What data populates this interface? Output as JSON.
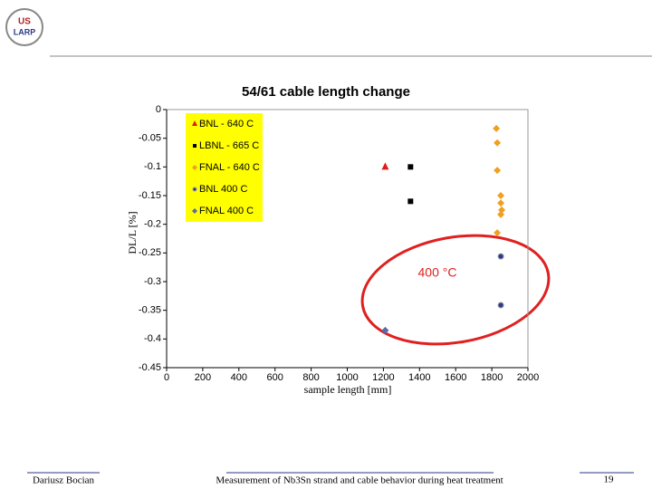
{
  "logo": {
    "top": "US",
    "bottom": "LARP"
  },
  "chart_data": {
    "type": "scatter",
    "title": "54/61 cable length change",
    "x_label": "sample length [mm]",
    "y_label": "DL/L [%]",
    "xlim": [
      0,
      2000
    ],
    "xticks": [
      0,
      200,
      400,
      600,
      800,
      1000,
      1200,
      1400,
      1600,
      1800,
      2000
    ],
    "ylim": [
      -0.45,
      0
    ],
    "yticks": [
      0,
      -0.05,
      -0.1,
      -0.15,
      -0.2,
      -0.25,
      -0.3,
      -0.35,
      -0.4,
      -0.45
    ],
    "legend": "upper left",
    "series": [
      {
        "name": "BNL - 640 C",
        "color": "#e31a1c",
        "marker": "triangle",
        "x": [
          1210
        ],
        "values": [
          -0.1
        ]
      },
      {
        "name": "LBNL - 665 C",
        "color": "#000000",
        "marker": "square",
        "x": [
          1350,
          1350
        ],
        "values": [
          -0.1,
          -0.16
        ]
      },
      {
        "name": "FNAL - 640 C",
        "color": "#f0a020",
        "marker": "diamond",
        "x": [
          1825,
          1830,
          1830,
          1850,
          1850,
          1855,
          1850,
          1830
        ],
        "values": [
          -0.033,
          -0.058,
          -0.106,
          -0.15,
          -0.163,
          -0.175,
          -0.183,
          -0.215
        ]
      },
      {
        "name": "BNL 400 C",
        "color": "#2e3a87",
        "marker": "circle",
        "x": [
          1850,
          1850
        ],
        "values": [
          -0.256,
          -0.341
        ]
      },
      {
        "name": "FNAL 400 C",
        "color": "#5a6aa8",
        "marker": "diamond",
        "x": [
          1210
        ],
        "values": [
          -0.385
        ]
      }
    ],
    "annotation": "400 °C"
  },
  "footer": {
    "author": "Dariusz Bocian",
    "topic": "Measurement of Nb3Sn strand and cable behavior during heat treatment",
    "page": "19"
  }
}
